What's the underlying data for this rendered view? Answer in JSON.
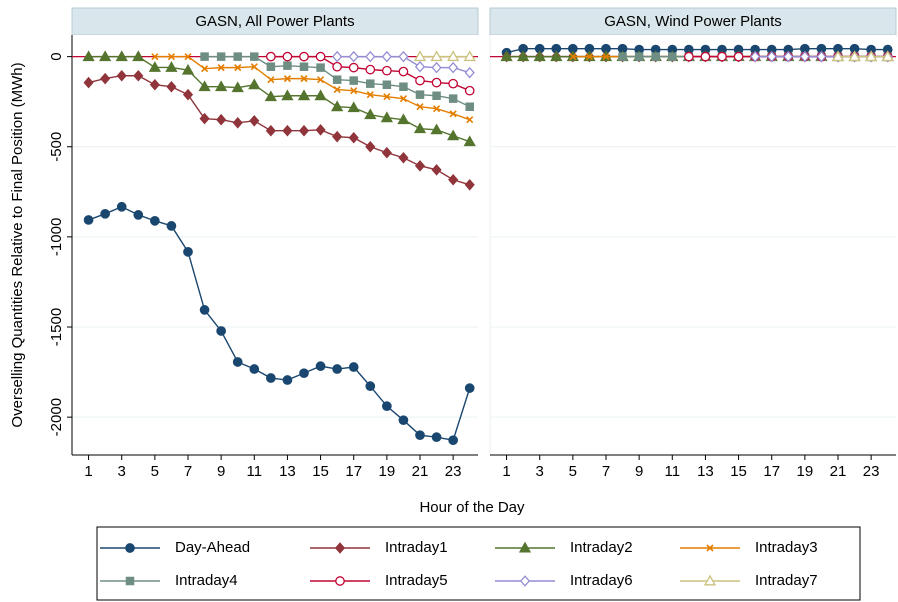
{
  "chart_data": {
    "type": "line",
    "y_label": "Overselling Quantities Relative to Final Position (MWh)",
    "x_label": "Hour of the Day",
    "x": [
      1,
      2,
      3,
      4,
      5,
      6,
      7,
      8,
      9,
      10,
      11,
      12,
      13,
      14,
      15,
      16,
      17,
      18,
      19,
      20,
      21,
      22,
      23,
      24
    ],
    "xlim": [
      0,
      24.5
    ],
    "xticks": [
      1,
      3,
      5,
      7,
      9,
      11,
      13,
      15,
      17,
      19,
      21,
      23
    ],
    "ylim": [
      -2210,
      120
    ],
    "yticks": [
      0,
      -500,
      -1000,
      -1500,
      -2000
    ],
    "grid": true,
    "reference_line": 0,
    "reference_color": "#c10534",
    "legend": [
      {
        "name": "Day-Ahead",
        "color": "#1a476f",
        "marker": "circle"
      },
      {
        "name": "Intraday1",
        "color": "#90353b",
        "marker": "diamond"
      },
      {
        "name": "Intraday2",
        "color": "#55752f",
        "marker": "triangle"
      },
      {
        "name": "Intraday3",
        "color": "#e37e00",
        "marker": "x"
      },
      {
        "name": "Intraday4",
        "color": "#6e8e84",
        "marker": "square"
      },
      {
        "name": "Intraday5",
        "color": "#c10534",
        "marker": "circle-open"
      },
      {
        "name": "Intraday6",
        "color": "#938dd2",
        "marker": "diamond-open"
      },
      {
        "name": "Intraday7",
        "color": "#cac27e",
        "marker": "triangle-open"
      }
    ],
    "panels": [
      {
        "title": "GASN, All Power Plants",
        "series": [
          {
            "values": [
              -906,
              -872,
              -833,
              -878,
              -911,
              -939,
              -1083,
              -1405,
              -1522,
              -1694,
              -1733,
              -1783,
              -1794,
              -1756,
              -1717,
              -1733,
              -1722,
              -1828,
              -1939,
              -2017,
              -2100,
              -2111,
              -2128,
              -1839
            ]
          },
          {
            "values": [
              -144,
              -122,
              -106,
              -106,
              -156,
              -167,
              -211,
              -344,
              -350,
              -367,
              -356,
              -411,
              -411,
              -411,
              -406,
              -444,
              -450,
              -500,
              -533,
              -561,
              -606,
              -628,
              -683,
              -711
            ]
          },
          {
            "values": [
              0,
              0,
              0,
              0,
              -60,
              -60,
              -75,
              -167,
              -167,
              -172,
              -156,
              -222,
              -217,
              -217,
              -217,
              -278,
              -283,
              -322,
              -339,
              -350,
              -400,
              -406,
              -439,
              -472
            ]
          },
          {
            "values": [
              null,
              null,
              null,
              null,
              0,
              0,
              0,
              -67,
              -61,
              -61,
              -56,
              -128,
              -122,
              -122,
              -128,
              -183,
              -189,
              -211,
              -222,
              -233,
              -278,
              -289,
              -317,
              -350
            ]
          },
          {
            "values": [
              null,
              null,
              null,
              null,
              null,
              null,
              null,
              0,
              0,
              0,
              0,
              -56,
              -50,
              -56,
              -61,
              -128,
              -133,
              -150,
              -156,
              -167,
              -211,
              -217,
              -233,
              -278
            ]
          },
          {
            "values": [
              null,
              null,
              null,
              null,
              null,
              null,
              null,
              null,
              null,
              null,
              null,
              0,
              0,
              0,
              0,
              -56,
              -61,
              -72,
              -78,
              -83,
              -133,
              -144,
              -150,
              -189
            ]
          },
          {
            "values": [
              null,
              null,
              null,
              null,
              null,
              null,
              null,
              null,
              null,
              null,
              null,
              null,
              null,
              null,
              null,
              0,
              0,
              0,
              0,
              0,
              -56,
              -61,
              -61,
              -89
            ]
          },
          {
            "values": [
              null,
              null,
              null,
              null,
              null,
              null,
              null,
              null,
              null,
              null,
              null,
              null,
              null,
              null,
              null,
              null,
              null,
              null,
              null,
              null,
              0,
              0,
              0,
              0
            ]
          }
        ]
      },
      {
        "title": "GASN, Wind Power Plants",
        "series": [
          {
            "values": [
              22,
              44,
              44,
              44,
              44,
              44,
              44,
              44,
              39,
              39,
              39,
              39,
              39,
              39,
              39,
              39,
              39,
              39,
              44,
              44,
              44,
              44,
              39,
              39
            ]
          },
          {
            "values": [
              0,
              0,
              0,
              0,
              0,
              0,
              0,
              0,
              0,
              0,
              0,
              0,
              0,
              0,
              0,
              0,
              0,
              0,
              0,
              0,
              0,
              0,
              0,
              0
            ]
          },
          {
            "values": [
              0,
              0,
              0,
              0,
              0,
              0,
              0,
              0,
              0,
              0,
              0,
              0,
              0,
              0,
              0,
              0,
              0,
              0,
              0,
              0,
              0,
              0,
              0,
              0
            ]
          },
          {
            "values": [
              null,
              null,
              null,
              null,
              0,
              0,
              0,
              0,
              0,
              0,
              0,
              0,
              0,
              0,
              0,
              0,
              0,
              0,
              0,
              0,
              0,
              0,
              0,
              0
            ]
          },
          {
            "values": [
              null,
              null,
              null,
              null,
              null,
              null,
              null,
              0,
              0,
              0,
              0,
              0,
              0,
              0,
              0,
              0,
              0,
              0,
              0,
              0,
              0,
              0,
              0,
              0
            ]
          },
          {
            "values": [
              null,
              null,
              null,
              null,
              null,
              null,
              null,
              null,
              null,
              null,
              null,
              0,
              0,
              0,
              0,
              0,
              0,
              0,
              0,
              0,
              0,
              0,
              0,
              0
            ]
          },
          {
            "values": [
              null,
              null,
              null,
              null,
              null,
              null,
              null,
              null,
              null,
              null,
              null,
              null,
              null,
              null,
              null,
              0,
              0,
              0,
              0,
              0,
              0,
              0,
              0,
              0
            ]
          },
          {
            "values": [
              null,
              null,
              null,
              null,
              null,
              null,
              null,
              null,
              null,
              null,
              null,
              null,
              null,
              null,
              null,
              null,
              null,
              null,
              null,
              null,
              0,
              0,
              0,
              0
            ]
          }
        ]
      }
    ]
  }
}
